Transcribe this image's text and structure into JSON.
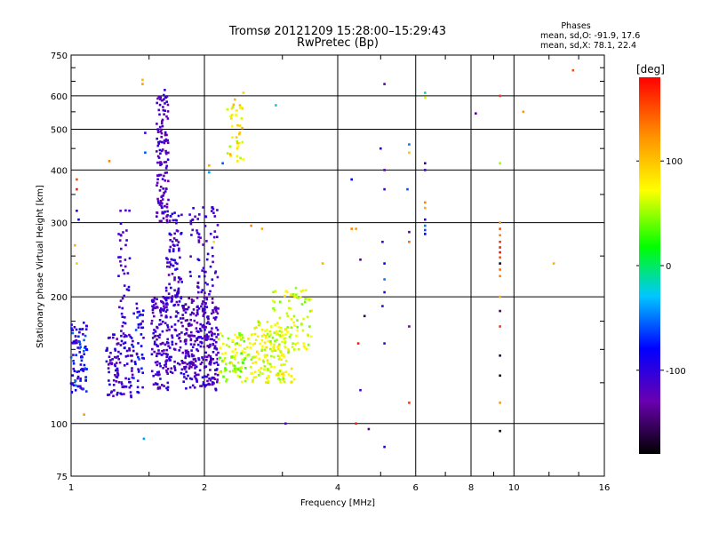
{
  "chart_data": {
    "type": "scatter",
    "title": "Tromsø 20121209 15:28:00–15:29:43",
    "subtitle": "RwPretec (Bp)",
    "xlabel": "Frequency [MHz]",
    "ylabel": "Stationary phase Virtual Height [km]",
    "xscale": "log",
    "yscale": "log",
    "xlim": [
      1,
      16
    ],
    "ylim": [
      75,
      750
    ],
    "xticks": [
      "1",
      "2",
      "4",
      "6",
      "8",
      "10",
      "16"
    ],
    "yticks": [
      "75",
      "100",
      "200",
      "300",
      "400",
      "500",
      "600",
      "750"
    ],
    "grid": true,
    "stats": {
      "title": "Phases",
      "line_o": "mean, sd,O:  -91.9, 17.6",
      "line_x": "mean, sd,X:  78.1, 22.4"
    },
    "colorbar": {
      "label": "[deg]",
      "range": [
        -180,
        180
      ],
      "ticks": [
        "100",
        "0",
        "-100"
      ]
    },
    "clusters": [
      {
        "f": [
          1.0,
          1.09
        ],
        "h": [
          118,
          175
        ],
        "phase": [
          -120,
          -50
        ],
        "count": 90
      },
      {
        "f": [
          1.2,
          1.38
        ],
        "h": [
          115,
          165
        ],
        "phase": [
          -130,
          -90
        ],
        "count": 110
      },
      {
        "f": [
          1.28,
          1.36
        ],
        "h": [
          165,
          330
        ],
        "phase": [
          -130,
          -95
        ],
        "count": 40
      },
      {
        "f": [
          1.38,
          1.46
        ],
        "h": [
          118,
          200
        ],
        "phase": [
          -120,
          -60
        ],
        "count": 45
      },
      {
        "f": [
          1.52,
          1.66
        ],
        "h": [
          120,
          200
        ],
        "phase": [
          -135,
          -95
        ],
        "count": 130
      },
      {
        "f": [
          1.56,
          1.66
        ],
        "h": [
          300,
          620
        ],
        "phase": [
          -135,
          -100
        ],
        "count": 130
      },
      {
        "f": [
          1.64,
          1.78
        ],
        "h": [
          130,
          320
        ],
        "phase": [
          -130,
          -90
        ],
        "count": 150
      },
      {
        "f": [
          1.78,
          2.15
        ],
        "h": [
          120,
          200
        ],
        "phase": [
          -140,
          -95
        ],
        "count": 300
      },
      {
        "f": [
          1.85,
          2.15
        ],
        "h": [
          200,
          330
        ],
        "phase": [
          -130,
          -95
        ],
        "count": 70
      },
      {
        "f": [
          2.15,
          2.5
        ],
        "h": [
          125,
          165
        ],
        "phase": [
          30,
          80
        ],
        "count": 90
      },
      {
        "f": [
          2.25,
          2.45
        ],
        "h": [
          420,
          590
        ],
        "phase": [
          50,
          110
        ],
        "count": 40
      },
      {
        "f": [
          2.5,
          3.2
        ],
        "h": [
          125,
          175
        ],
        "phase": [
          45,
          90
        ],
        "count": 160
      },
      {
        "f": [
          2.8,
          3.5
        ],
        "h": [
          150,
          210
        ],
        "phase": [
          40,
          85
        ],
        "count": 80
      }
    ],
    "points": [
      {
        "f": 1.45,
        "h": 640,
        "phase": 120
      },
      {
        "f": 1.45,
        "h": 655,
        "phase": 105
      },
      {
        "f": 2.45,
        "h": 610,
        "phase": 95
      },
      {
        "f": 2.9,
        "h": 570,
        "phase": -30
      },
      {
        "f": 5.1,
        "h": 640,
        "phase": -120
      },
      {
        "f": 6.3,
        "h": 610,
        "phase": -10
      },
      {
        "f": 6.3,
        "h": 595,
        "phase": 60
      },
      {
        "f": 8.2,
        "h": 545,
        "phase": -140
      },
      {
        "f": 9.3,
        "h": 600,
        "phase": 160
      },
      {
        "f": 10.5,
        "h": 550,
        "phase": 120
      },
      {
        "f": 13.6,
        "h": 690,
        "phase": 150
      },
      {
        "f": 12.3,
        "h": 240,
        "phase": 110
      },
      {
        "f": 1.47,
        "h": 490,
        "phase": -110
      },
      {
        "f": 1.47,
        "h": 440,
        "phase": -60
      },
      {
        "f": 1.22,
        "h": 420,
        "phase": 130
      },
      {
        "f": 1.03,
        "h": 380,
        "phase": 150
      },
      {
        "f": 1.03,
        "h": 360,
        "phase": 170
      },
      {
        "f": 1.03,
        "h": 320,
        "phase": -100
      },
      {
        "f": 1.04,
        "h": 305,
        "phase": -80
      },
      {
        "f": 1.02,
        "h": 265,
        "phase": 110
      },
      {
        "f": 1.03,
        "h": 240,
        "phase": 95
      },
      {
        "f": 1.07,
        "h": 105,
        "phase": 120
      },
      {
        "f": 1.46,
        "h": 92,
        "phase": -40
      },
      {
        "f": 2.05,
        "h": 410,
        "phase": 110
      },
      {
        "f": 2.05,
        "h": 395,
        "phase": -40
      },
      {
        "f": 2.2,
        "h": 415,
        "phase": -60
      },
      {
        "f": 2.1,
        "h": 270,
        "phase": 90
      },
      {
        "f": 2.55,
        "h": 295,
        "phase": 130
      },
      {
        "f": 2.7,
        "h": 290,
        "phase": 110
      },
      {
        "f": 3.05,
        "h": 100,
        "phase": -120
      },
      {
        "f": 3.7,
        "h": 240,
        "phase": 110
      },
      {
        "f": 4.3,
        "h": 380,
        "phase": -80
      },
      {
        "f": 4.3,
        "h": 290,
        "phase": 130
      },
      {
        "f": 4.4,
        "h": 290,
        "phase": 120
      },
      {
        "f": 4.5,
        "h": 245,
        "phase": -140
      },
      {
        "f": 4.45,
        "h": 155,
        "phase": 170
      },
      {
        "f": 4.5,
        "h": 120,
        "phase": -110
      },
      {
        "f": 4.4,
        "h": 100,
        "phase": 170
      },
      {
        "f": 4.6,
        "h": 180,
        "phase": -160
      },
      {
        "f": 4.7,
        "h": 97,
        "phase": -140
      },
      {
        "f": 5.0,
        "h": 450,
        "phase": -100
      },
      {
        "f": 5.1,
        "h": 400,
        "phase": -120
      },
      {
        "f": 5.1,
        "h": 360,
        "phase": -110
      },
      {
        "f": 5.05,
        "h": 270,
        "phase": -110
      },
      {
        "f": 5.1,
        "h": 240,
        "phase": -80
      },
      {
        "f": 5.1,
        "h": 220,
        "phase": -50
      },
      {
        "f": 5.1,
        "h": 205,
        "phase": -100
      },
      {
        "f": 5.05,
        "h": 190,
        "phase": -110
      },
      {
        "f": 5.1,
        "h": 155,
        "phase": -110
      },
      {
        "f": 5.1,
        "h": 88,
        "phase": -90
      },
      {
        "f": 5.8,
        "h": 460,
        "phase": -50
      },
      {
        "f": 5.8,
        "h": 440,
        "phase": 100
      },
      {
        "f": 5.75,
        "h": 360,
        "phase": -60
      },
      {
        "f": 5.8,
        "h": 285,
        "phase": -140
      },
      {
        "f": 5.8,
        "h": 270,
        "phase": 140
      },
      {
        "f": 5.8,
        "h": 170,
        "phase": -130
      },
      {
        "f": 5.8,
        "h": 112,
        "phase": 160
      },
      {
        "f": 6.3,
        "h": 415,
        "phase": -150
      },
      {
        "f": 6.3,
        "h": 400,
        "phase": -110
      },
      {
        "f": 6.3,
        "h": 335,
        "phase": 130
      },
      {
        "f": 6.3,
        "h": 325,
        "phase": 110
      },
      {
        "f": 6.3,
        "h": 305,
        "phase": -100
      },
      {
        "f": 6.3,
        "h": 295,
        "phase": -50
      },
      {
        "f": 6.3,
        "h": 288,
        "phase": -60
      },
      {
        "f": 6.3,
        "h": 282,
        "phase": -80
      },
      {
        "f": 9.3,
        "h": 415,
        "phase": 50
      },
      {
        "f": 9.3,
        "h": 300,
        "phase": 120
      },
      {
        "f": 9.3,
        "h": 290,
        "phase": 150
      },
      {
        "f": 9.3,
        "h": 280,
        "phase": 130
      },
      {
        "f": 9.3,
        "h": 270,
        "phase": 160
      },
      {
        "f": 9.3,
        "h": 262,
        "phase": 170
      },
      {
        "f": 9.3,
        "h": 255,
        "phase": 175
      },
      {
        "f": 9.3,
        "h": 248,
        "phase": 150
      },
      {
        "f": 9.3,
        "h": 240,
        "phase": -170
      },
      {
        "f": 9.3,
        "h": 232,
        "phase": 140
      },
      {
        "f": 9.3,
        "h": 224,
        "phase": 130
      },
      {
        "f": 9.3,
        "h": 200,
        "phase": 110
      },
      {
        "f": 9.3,
        "h": 185,
        "phase": -150
      },
      {
        "f": 9.3,
        "h": 170,
        "phase": 160
      },
      {
        "f": 9.3,
        "h": 145,
        "phase": -160
      },
      {
        "f": 9.3,
        "h": 130,
        "phase": -170
      },
      {
        "f": 9.3,
        "h": 112,
        "phase": 120
      },
      {
        "f": 9.3,
        "h": 96,
        "phase": -175
      }
    ]
  }
}
